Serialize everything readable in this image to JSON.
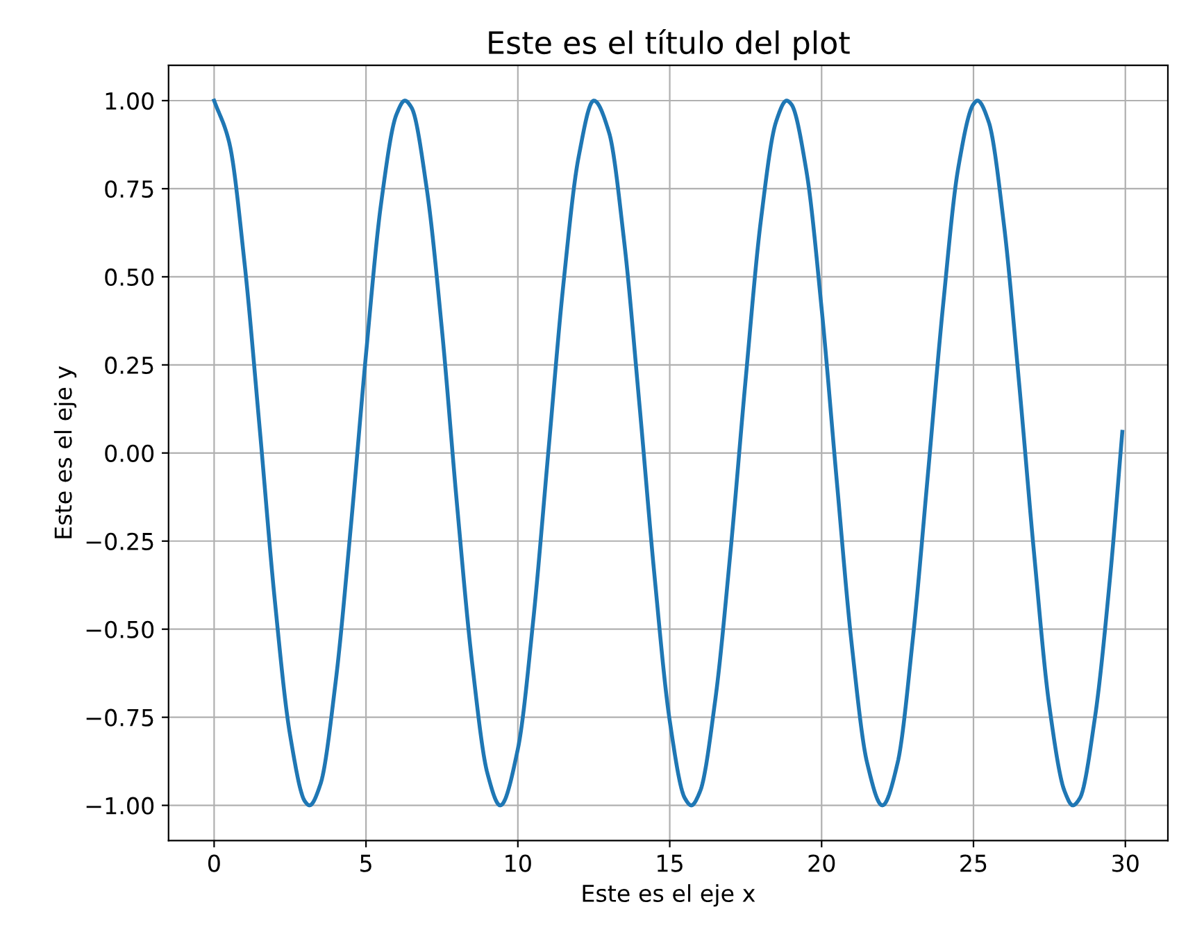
{
  "chart_data": {
    "type": "line",
    "title": "Este es el título del plot",
    "xlabel": "Este es el eje x",
    "ylabel": "Este es el eje y",
    "series": [
      {
        "color": "#1f77b4",
        "x": [
          0,
          0.5,
          1,
          1.5,
          2,
          2.5,
          3,
          3.14,
          3.5,
          4,
          4.5,
          5,
          5.5,
          6,
          6.28,
          6.5,
          7,
          7.5,
          8,
          8.5,
          9,
          9.42,
          10,
          10.5,
          11,
          11.5,
          12,
          12.5,
          13,
          13.5,
          14,
          14.5,
          15,
          15.5,
          15.71,
          16,
          16.5,
          17,
          17.5,
          18,
          18.5,
          18.85,
          19,
          19.5,
          20,
          20.5,
          21,
          21.5,
          22,
          22.5,
          23,
          23.5,
          24,
          24.5,
          25,
          25.13,
          25.5,
          26,
          26.5,
          27,
          27.5,
          28,
          28.27,
          28.5,
          29,
          29.5,
          29.9
        ],
        "values": [
          1.0,
          0.88,
          0.54,
          0.07,
          -0.42,
          -0.8,
          -0.99,
          -1.0,
          -0.94,
          -0.65,
          -0.21,
          0.28,
          0.71,
          0.96,
          1.0,
          0.98,
          0.75,
          0.35,
          -0.15,
          -0.6,
          -0.91,
          -1.0,
          -0.84,
          -0.48,
          0.0,
          0.48,
          0.84,
          1.0,
          0.91,
          0.6,
          0.14,
          -0.35,
          -0.76,
          -0.98,
          -1.0,
          -0.96,
          -0.7,
          -0.28,
          0.21,
          0.66,
          0.94,
          1.0,
          0.99,
          0.8,
          0.41,
          -0.08,
          -0.55,
          -0.88,
          -1.0,
          -0.88,
          -0.53,
          -0.06,
          0.42,
          0.81,
          0.99,
          1.0,
          0.94,
          0.65,
          0.2,
          -0.29,
          -0.72,
          -0.96,
          -1.0,
          -0.98,
          -0.75,
          -0.35,
          0.06
        ]
      }
    ],
    "xlim": [
      -1.5,
      31.4
    ],
    "ylim": [
      -1.1,
      1.1
    ],
    "xticks": [
      0,
      5,
      10,
      15,
      20,
      25,
      30
    ],
    "yticks": [
      {
        "value": -1,
        "label": "−1.00"
      },
      {
        "value": -0.75,
        "label": "−0.75"
      },
      {
        "value": -0.5,
        "label": "−0.50"
      },
      {
        "value": -0.25,
        "label": "−0.25"
      },
      {
        "value": 0,
        "label": "0.00"
      },
      {
        "value": 0.25,
        "label": "0.25"
      },
      {
        "value": 0.5,
        "label": "0.50"
      },
      {
        "value": 0.75,
        "label": "0.75"
      },
      {
        "value": 1,
        "label": "1.00"
      }
    ],
    "grid": true
  }
}
